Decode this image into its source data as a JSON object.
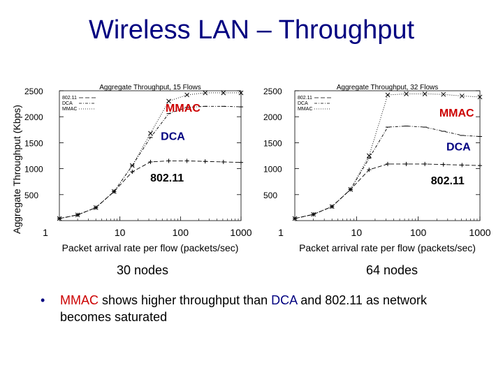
{
  "slide": {
    "title": "Wireless LAN – Throughput",
    "y_axis_label": "Aggregate Throughput (Kbps)",
    "bullet": {
      "marker": "•",
      "part1": "MMAC",
      "part2": " shows higher throughput than ",
      "part3": "DCA",
      "part4": " and 802.11 as network",
      "line2": "becomes saturated"
    }
  },
  "chart_data": [
    {
      "type": "line",
      "title": "Aggregate Throughput, 15 Flows",
      "caption": "30 nodes",
      "xlabel": "Packet arrival rate per flow (packets/sec)",
      "x_scale": "log",
      "xlim": [
        1,
        1000
      ],
      "ylim": [
        0,
        2500
      ],
      "x_ticks": [
        "1",
        "10",
        "100",
        "1000"
      ],
      "y_ticks": [
        "500",
        "1000",
        "1500",
        "2000",
        "2500"
      ],
      "legend": [
        "802.11",
        "DCA",
        "MMAC"
      ],
      "legend_position": "top-left",
      "series": [
        {
          "name": "802.11",
          "x": [
            1,
            2,
            4,
            8,
            16,
            32,
            64,
            128,
            256,
            512,
            1000
          ],
          "y": [
            40,
            110,
            250,
            560,
            940,
            1130,
            1150,
            1150,
            1140,
            1130,
            1120
          ]
        },
        {
          "name": "DCA",
          "x": [
            1,
            2,
            4,
            8,
            16,
            32,
            64,
            128,
            256,
            512,
            1000
          ],
          "y": [
            40,
            110,
            250,
            560,
            1060,
            1600,
            2060,
            2180,
            2200,
            2200,
            2190
          ]
        },
        {
          "name": "MMAC",
          "x": [
            1,
            2,
            4,
            8,
            16,
            32,
            64,
            128,
            256,
            512,
            1000
          ],
          "y": [
            40,
            110,
            250,
            560,
            1060,
            1680,
            2300,
            2420,
            2460,
            2460,
            2460
          ]
        }
      ],
      "annotations": {
        "MMAC": "MMAC",
        "DCA": "DCA",
        "802.11": "802.11"
      }
    },
    {
      "type": "line",
      "title": "Aggregate Throughput, 32 Flows",
      "caption": "64 nodes",
      "xlabel": "Packet arrival rate per flow (packets/sec)",
      "x_scale": "log",
      "xlim": [
        1,
        1000
      ],
      "ylim": [
        0,
        2500
      ],
      "x_ticks": [
        "1",
        "10",
        "100",
        "1000"
      ],
      "y_ticks": [
        "500",
        "1000",
        "1500",
        "2000",
        "2500"
      ],
      "legend": [
        "802.11",
        "DCA",
        "MMAC"
      ],
      "legend_position": "top-left",
      "series": [
        {
          "name": "802.11",
          "x": [
            1,
            2,
            4,
            8,
            16,
            32,
            64,
            128,
            256,
            512,
            1000
          ],
          "y": [
            40,
            120,
            270,
            600,
            980,
            1090,
            1090,
            1090,
            1080,
            1070,
            1060
          ]
        },
        {
          "name": "DCA",
          "x": [
            1,
            2,
            4,
            8,
            16,
            32,
            64,
            128,
            256,
            512,
            1000
          ],
          "y": [
            40,
            120,
            270,
            600,
            1200,
            1800,
            1820,
            1800,
            1720,
            1640,
            1620
          ]
        },
        {
          "name": "MMAC",
          "x": [
            1,
            2,
            4,
            8,
            16,
            32,
            64,
            128,
            256,
            512,
            1000
          ],
          "y": [
            40,
            120,
            270,
            600,
            1250,
            2420,
            2440,
            2440,
            2430,
            2400,
            2380
          ]
        }
      ],
      "annotations": {
        "MMAC": "MMAC",
        "DCA": "DCA",
        "802.11": "802.11"
      }
    }
  ]
}
